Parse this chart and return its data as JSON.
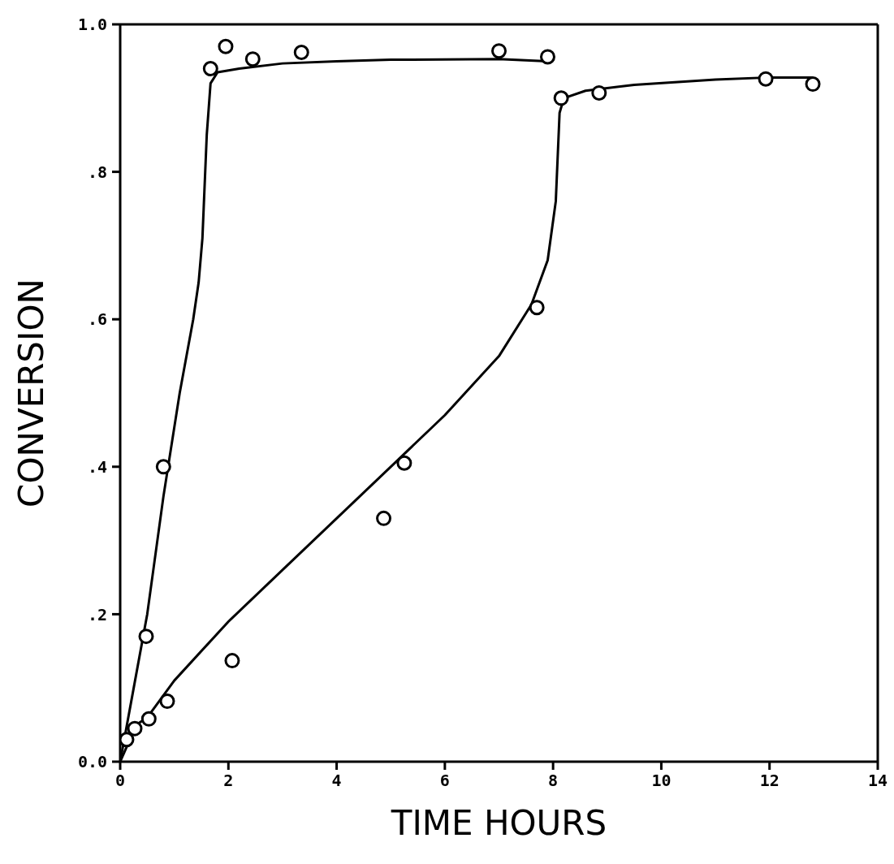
{
  "chart_data": {
    "type": "scatter",
    "xlabel": "TIME HOURS",
    "ylabel": "CONVERSION",
    "xlim": [
      0,
      14
    ],
    "xticks": [
      0,
      2,
      4,
      6,
      8,
      10,
      12,
      14
    ],
    "ylim": [
      0,
      1
    ],
    "yticks": [
      {
        "value": 0,
        "label": "0.0"
      },
      {
        "value": 0.2,
        "label": ".2"
      },
      {
        "value": 0.4,
        "label": ".4"
      },
      {
        "value": 0.6,
        "label": ".6"
      },
      {
        "value": 0.8,
        "label": ".8"
      },
      {
        "value": 1,
        "label": "1.0"
      }
    ],
    "grid": false,
    "legend": false,
    "marker": "circle",
    "series": [
      {
        "color": "#000000",
        "x": [
          0.12,
          0.48,
          0.8,
          1.67,
          1.95,
          2.45,
          3.35,
          7.0,
          7.9
        ],
        "values": [
          0.03,
          0.17,
          0.4,
          0.94,
          0.97,
          0.953,
          0.962,
          0.964,
          0.956
        ]
      },
      {
        "color": "#000000",
        "x": [
          0.27,
          0.53,
          0.87,
          2.07,
          4.87,
          5.25,
          7.7,
          8.15,
          8.85,
          11.93,
          12.8
        ],
        "values": [
          0.045,
          0.058,
          0.082,
          0.137,
          0.33,
          0.405,
          0.616,
          0.9,
          0.907,
          0.926,
          0.919
        ]
      },
      {
        "type": "line",
        "marker": "none",
        "color": "#000000",
        "x": [
          0,
          0.2,
          0.5,
          0.8,
          1.1,
          1.35,
          1.45,
          1.52,
          1.6,
          1.67,
          1.8,
          2.2,
          3,
          4,
          5,
          7,
          7.9
        ],
        "values": [
          0,
          0.08,
          0.2,
          0.36,
          0.5,
          0.6,
          0.65,
          0.71,
          0.85,
          0.92,
          0.935,
          0.94,
          0.947,
          0.95,
          0.952,
          0.953,
          0.95
        ]
      },
      {
        "type": "line",
        "marker": "none",
        "color": "#000000",
        "x": [
          0,
          0.3,
          0.5,
          1,
          2,
          3,
          4,
          5,
          6,
          7,
          7.6,
          7.9,
          8.05,
          8.12,
          8.2,
          8.6,
          9.5,
          11,
          12,
          12.8
        ],
        "values": [
          0,
          0.05,
          0.06,
          0.11,
          0.19,
          0.26,
          0.33,
          0.4,
          0.47,
          0.55,
          0.62,
          0.68,
          0.76,
          0.88,
          0.9,
          0.91,
          0.918,
          0.925,
          0.928,
          0.928
        ]
      }
    ]
  }
}
